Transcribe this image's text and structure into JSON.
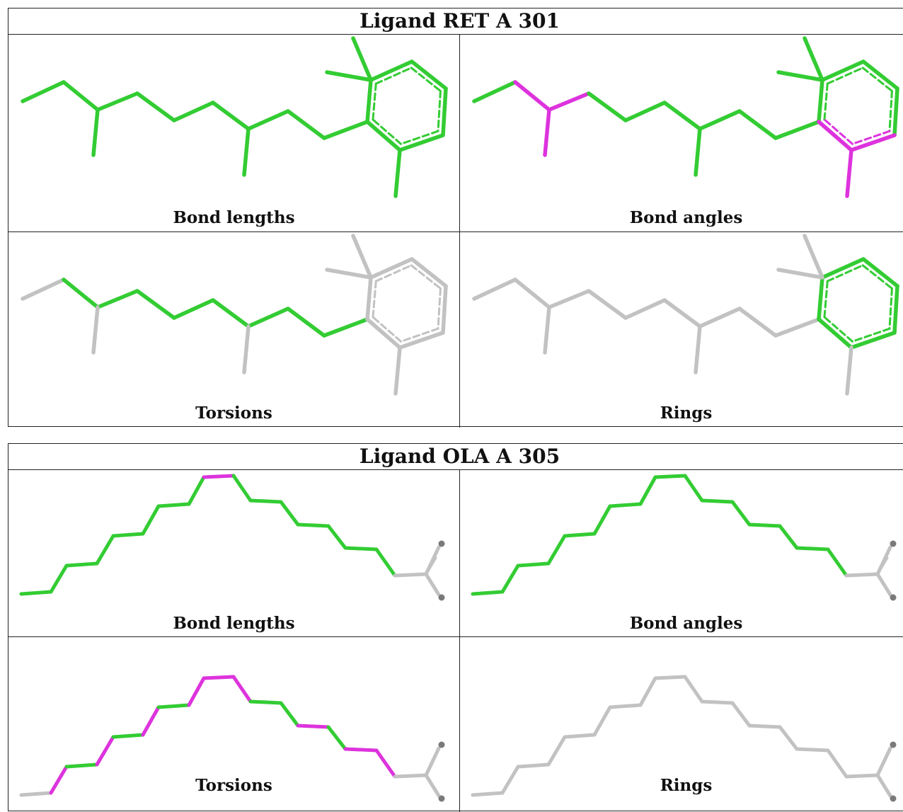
{
  "colors": {
    "ok": "#33cc33",
    "outlier": "#dd33dd",
    "excluded": "#c2c2c2",
    "atom": "#7a7a7a"
  },
  "tables": [
    {
      "title": "Ligand RET A 301",
      "panels": [
        {
          "caption": "Bond lengths",
          "status": {
            "chain": "ok",
            "ring": "ok"
          }
        },
        {
          "caption": "Bond angles",
          "status": {
            "chain": "ok",
            "ring": "ok"
          }
        },
        {
          "caption": "Torsions",
          "status": {
            "chain": "ok",
            "ring": "excluded"
          }
        },
        {
          "caption": "Rings",
          "status": {
            "chain": "excluded",
            "ring": "ok"
          }
        }
      ]
    },
    {
      "title": "Ligand OLA A 305",
      "panels": [
        {
          "caption": "Bond lengths"
        },
        {
          "caption": "Bond angles"
        },
        {
          "caption": "Torsions"
        },
        {
          "caption": "Rings"
        }
      ]
    }
  ]
}
